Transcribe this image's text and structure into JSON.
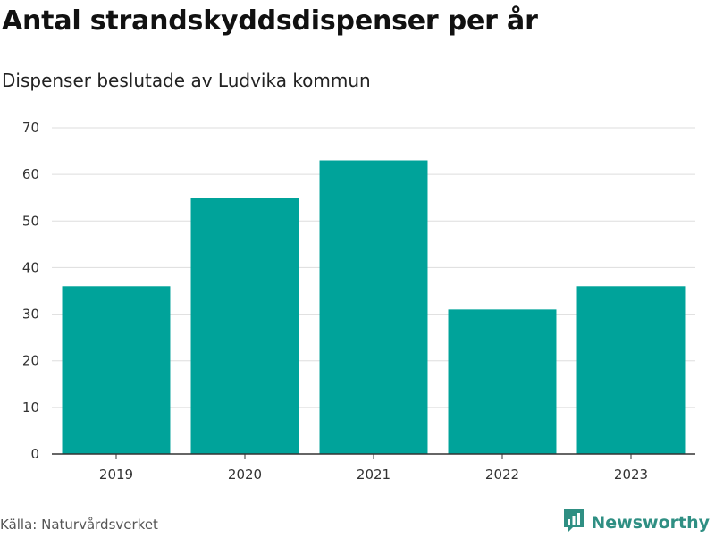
{
  "header": {
    "title": "Antal strandskyddsdispenser per år",
    "subtitle": "Dispenser beslutade av Ludvika kommun"
  },
  "footer": {
    "source": "Källa: Naturvårdsverket",
    "brand": "Newsworthy",
    "brand_icon": "newsworthy-logo-icon"
  },
  "colors": {
    "bar": "#00a39a",
    "grid": "#dddddd",
    "axis": "#333333",
    "brand": "#2f8f83"
  },
  "chart_data": {
    "type": "bar",
    "title": "Antal strandskyddsdispenser per år",
    "subtitle": "Dispenser beslutade av Ludvika kommun",
    "categories": [
      "2019",
      "2020",
      "2021",
      "2022",
      "2023"
    ],
    "values": [
      36,
      55,
      63,
      31,
      36
    ],
    "ylim": [
      0,
      70
    ],
    "yticks": [
      0,
      10,
      20,
      30,
      40,
      50,
      60,
      70
    ],
    "grid": true,
    "xlabel": "",
    "ylabel": ""
  }
}
